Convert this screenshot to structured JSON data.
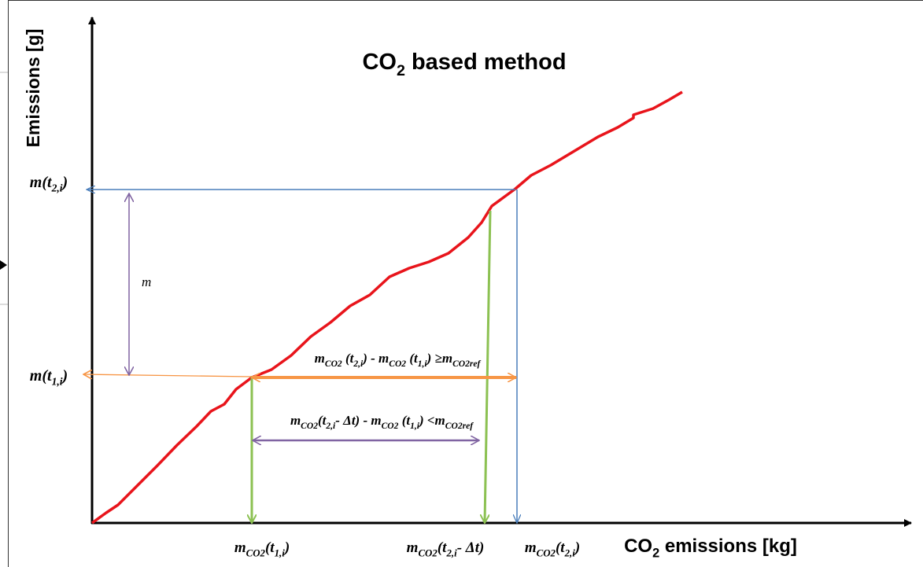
{
  "title": [
    {
      "text": "CO"
    },
    {
      "text": "2",
      "sub": true
    },
    {
      "text": " based method"
    }
  ],
  "y_axis_label": "Emissions [g]",
  "x_axis_label": [
    {
      "text": "CO"
    },
    {
      "text": "2",
      "sub": true
    },
    {
      "text": " emissions [kg]"
    }
  ],
  "y_labels": [
    [
      {
        "text": "m(t"
      },
      {
        "text": "2,i",
        "sub": true
      },
      {
        "text": ")"
      }
    ],
    [
      {
        "text": "m(t"
      },
      {
        "text": "1,i",
        "sub": true
      },
      {
        "text": ")"
      }
    ]
  ],
  "x_labels": [
    [
      {
        "text": "m"
      },
      {
        "text": "CO2",
        "sub": true
      },
      {
        "text": "(t"
      },
      {
        "text": "1,i",
        "sub": true
      },
      {
        "text": ")"
      }
    ],
    [
      {
        "text": "m"
      },
      {
        "text": "CO2",
        "sub": true
      },
      {
        "text": "(t"
      },
      {
        "text": "2,i",
        "sub": true
      },
      {
        "text": "- Δt)"
      }
    ],
    [
      {
        "text": "m"
      },
      {
        "text": "CO2",
        "sub": true
      },
      {
        "text": "(t"
      },
      {
        "text": "2,i",
        "sub": true
      },
      {
        "text": ")"
      }
    ]
  ],
  "annotations": {
    "m": "m",
    "upper": [
      {
        "text": "m"
      },
      {
        "text": "CO2",
        "sub": true
      },
      {
        "text": " (t"
      },
      {
        "text": "2,i",
        "sub": true
      },
      {
        "text": ") - m"
      },
      {
        "text": "CO2",
        "sub": true
      },
      {
        "text": " (t"
      },
      {
        "text": "1,i",
        "sub": true
      },
      {
        "text": ") ≥m"
      },
      {
        "text": "CO2ref",
        "sub": true
      }
    ],
    "lower": [
      {
        "text": "m"
      },
      {
        "text": "CO2",
        "sub": true
      },
      {
        "text": "(t"
      },
      {
        "text": "2,i",
        "sub": true
      },
      {
        "text": "- Δt) - m"
      },
      {
        "text": "CO2",
        "sub": true
      },
      {
        "text": " (t"
      },
      {
        "text": "1,i",
        "sub": true
      },
      {
        "text": ") <m"
      },
      {
        "text": "CO2ref",
        "sub": true
      }
    ]
  }
}
